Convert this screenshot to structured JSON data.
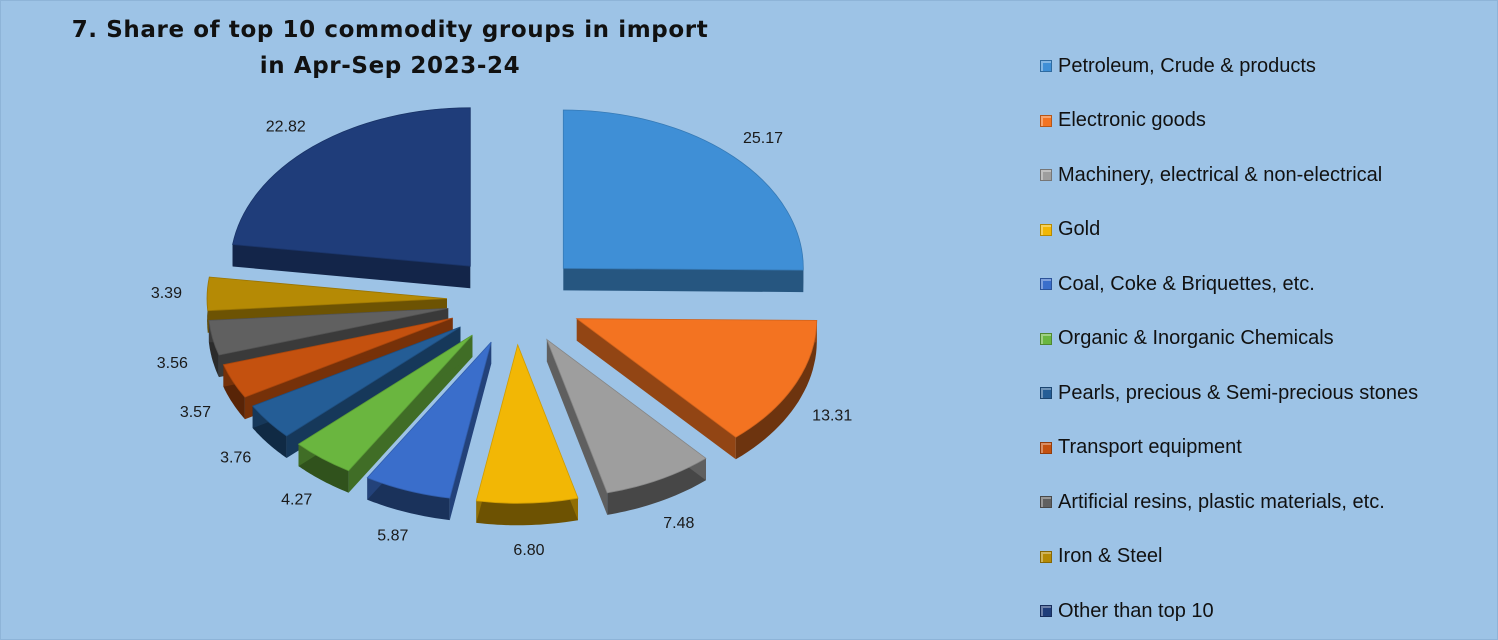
{
  "title": {
    "line1": "7. Share of top 10 commodity groups in import",
    "line2": "in Apr-Sep 2023-24"
  },
  "chart_data": {
    "type": "pie",
    "style": "3d-exploded",
    "title": "7. Share of top 10 commodity groups in import in Apr-Sep 2023-24",
    "legend_placement": "right",
    "slices": [
      {
        "name": "Petroleum, Crude & products",
        "value": 25.17,
        "label": "25.17",
        "color": "#3f8fd6"
      },
      {
        "name": "Electronic goods",
        "value": 13.31,
        "label": "13.31",
        "color": "#f37321"
      },
      {
        "name": "Machinery, electrical & non-electrical",
        "value": 7.48,
        "label": "7.48",
        "color": "#9e9e9e"
      },
      {
        "name": "Gold",
        "value": 6.8,
        "label": "6.80",
        "color": "#f2b705"
      },
      {
        "name": "Coal, Coke & Briquettes, etc.",
        "value": 5.87,
        "label": "5.87",
        "color": "#3a6ecb"
      },
      {
        "name": "Organic & Inorganic Chemicals",
        "value": 4.27,
        "label": "4.27",
        "color": "#6ab63f"
      },
      {
        "name": "Pearls, precious & Semi-precious stones",
        "value": 3.76,
        "label": "3.76",
        "color": "#245d96"
      },
      {
        "name": "Transport equipment",
        "value": 3.57,
        "label": "3.57",
        "color": "#c4510f"
      },
      {
        "name": "Artificial resins, plastic materials, etc.",
        "value": 3.56,
        "label": "3.56",
        "color": "#606060"
      },
      {
        "name": "Iron & Steel",
        "value": 3.39,
        "label": "3.39",
        "color": "#b58a05"
      },
      {
        "name": "Other than top 10",
        "value": 22.82,
        "label": "22.82",
        "color": "#1f3d7a"
      }
    ]
  }
}
